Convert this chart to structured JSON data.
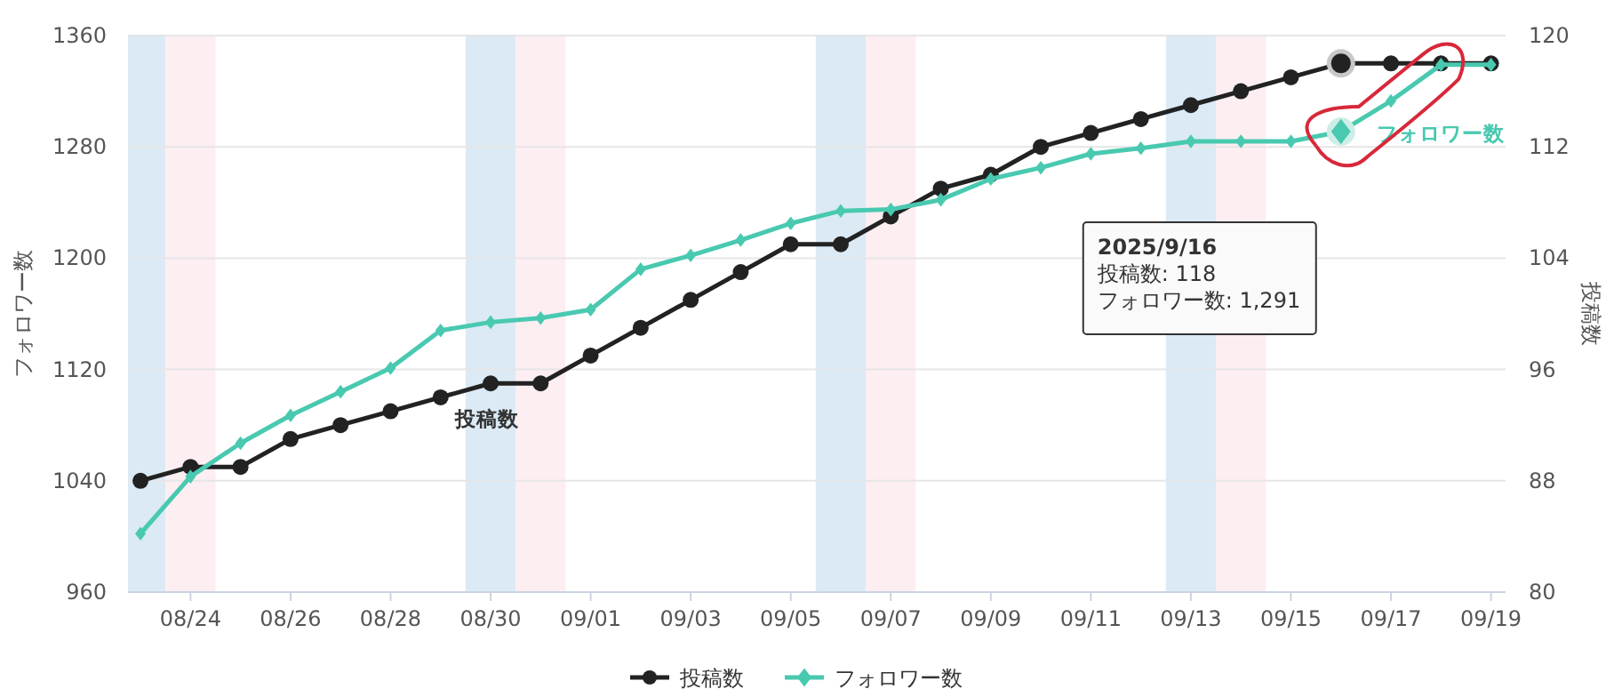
{
  "chart_data": {
    "type": "line",
    "x": [
      "2025-08-23",
      "2025-08-24",
      "2025-08-25",
      "2025-08-26",
      "2025-08-27",
      "2025-08-28",
      "2025-08-29",
      "2025-08-30",
      "2025-08-31",
      "2025-09-01",
      "2025-09-02",
      "2025-09-03",
      "2025-09-04",
      "2025-09-05",
      "2025-09-06",
      "2025-09-07",
      "2025-09-08",
      "2025-09-09",
      "2025-09-10",
      "2025-09-11",
      "2025-09-12",
      "2025-09-13",
      "2025-09-14",
      "2025-09-15",
      "2025-09-16",
      "2025-09-17",
      "2025-09-18",
      "2025-09-19"
    ],
    "series": [
      {
        "name": "投稿数",
        "color": "#222222",
        "axis": "y2",
        "marker": "circle",
        "values": [
          88,
          89,
          89,
          91,
          92,
          93,
          94,
          95,
          95,
          97,
          99,
          101,
          103,
          105,
          105,
          107,
          109,
          110,
          112,
          113,
          114,
          115,
          116,
          117,
          118,
          118,
          118,
          118
        ]
      },
      {
        "name": "フォロワー数",
        "color": "#48c9b0",
        "marker": "diamond",
        "values": [
          1002,
          1043,
          1067,
          1087,
          1104,
          1121,
          1148,
          1154,
          1157,
          1163,
          1192,
          1202,
          1213,
          1225,
          1234,
          1235,
          1242,
          1257,
          1265,
          1275,
          1279,
          1284,
          1284,
          1284,
          1291,
          1313,
          1339,
          1339
        ]
      }
    ],
    "ylabel": "フォロワー数",
    "y2label": "投稿数",
    "xlim": [
      "2025-08-22T18:00",
      "2025-09-19T07:00"
    ],
    "xticks": [
      {
        "value": "2025-08-24",
        "label": "08/24"
      },
      {
        "value": "2025-08-26",
        "label": "08/26"
      },
      {
        "value": "2025-08-28",
        "label": "08/28"
      },
      {
        "value": "2025-08-30",
        "label": "08/30"
      },
      {
        "value": "2025-09-01",
        "label": "09/01"
      },
      {
        "value": "2025-09-03",
        "label": "09/03"
      },
      {
        "value": "2025-09-05",
        "label": "09/05"
      },
      {
        "value": "2025-09-07",
        "label": "09/07"
      },
      {
        "value": "2025-09-09",
        "label": "09/09"
      },
      {
        "value": "2025-09-11",
        "label": "09/11"
      },
      {
        "value": "2025-09-13",
        "label": "09/13"
      },
      {
        "value": "2025-09-15",
        "label": "09/15"
      },
      {
        "value": "2025-09-17",
        "label": "09/17"
      },
      {
        "value": "2025-09-19",
        "label": "09/19"
      }
    ],
    "ylim": [
      960,
      1360
    ],
    "yticks": [
      960,
      1040,
      1120,
      1200,
      1280,
      1360
    ],
    "y2lim": [
      80,
      120
    ],
    "y2ticks": [
      80,
      88,
      96,
      104,
      112,
      120
    ],
    "bands": [
      {
        "axis": "x",
        "from": "2025-08-22T18:00",
        "to": "2025-08-23T12:00",
        "color": "#dbeaf5"
      },
      {
        "axis": "x",
        "from": "2025-08-23T12:00",
        "to": "2025-08-24T12:00",
        "color": "#fdeef2"
      },
      {
        "axis": "x",
        "from": "2025-08-29T12:00",
        "to": "2025-08-30T12:00",
        "color": "#dbeaf5"
      },
      {
        "axis": "x",
        "from": "2025-08-30T12:00",
        "to": "2025-08-31T12:00",
        "color": "#fdeef2"
      },
      {
        "axis": "x",
        "from": "2025-09-05T12:00",
        "to": "2025-09-06T12:00",
        "color": "#dbeaf5"
      },
      {
        "axis": "x",
        "from": "2025-09-06T12:00",
        "to": "2025-09-07T12:00",
        "color": "#fdeef2"
      },
      {
        "axis": "x",
        "from": "2025-09-12T12:00",
        "to": "2025-09-13T12:00",
        "color": "#dbeaf5"
      },
      {
        "axis": "x",
        "from": "2025-09-13T12:00",
        "to": "2025-09-14T12:00",
        "color": "#fdeef2"
      }
    ],
    "annotations": [
      "2025/9/16\n投稿数: 118\nフォロワー数: 1,291"
    ],
    "grid": "y",
    "legend": "bottom",
    "line_style": "solid"
  }
}
